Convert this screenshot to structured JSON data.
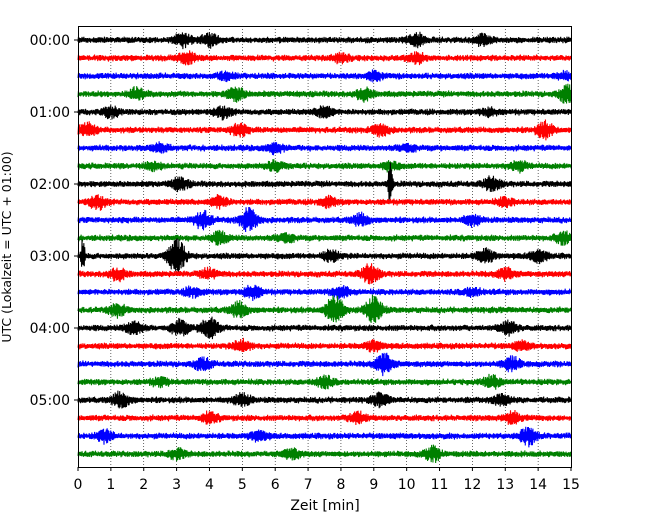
{
  "chart_data": {
    "type": "line",
    "title": "",
    "xlabel": "Zeit  [min]",
    "ylabel": "UTC (Lokalzeit = UTC + 01:00)",
    "xlim": [
      0,
      15
    ],
    "xticks": [
      0,
      1,
      2,
      3,
      4,
      5,
      6,
      7,
      8,
      9,
      10,
      11,
      12,
      13,
      14,
      15
    ],
    "grid": "vertical dotted",
    "trace_interval_minutes": 15,
    "trace_colors": [
      "#000000",
      "#ff0000",
      "#0000ff",
      "#008000"
    ],
    "ytick_labels": [
      "00:00",
      "01:00",
      "02:00",
      "03:00",
      "04:00",
      "05:00"
    ],
    "traces": [
      {
        "start": "00:00",
        "color": "#000000",
        "events": [
          [
            3.2,
            0.35
          ],
          [
            4.0,
            0.3
          ],
          [
            10.3,
            0.35
          ],
          [
            12.3,
            0.25
          ]
        ]
      },
      {
        "start": "00:15",
        "color": "#ff0000",
        "events": [
          [
            3.3,
            0.3
          ],
          [
            8.0,
            0.2
          ],
          [
            10.3,
            0.25
          ]
        ]
      },
      {
        "start": "00:30",
        "color": "#0000ff",
        "events": [
          [
            4.5,
            0.2
          ],
          [
            9.0,
            0.2
          ],
          [
            14.8,
            0.2
          ]
        ]
      },
      {
        "start": "00:45",
        "color": "#008000",
        "events": [
          [
            1.8,
            0.3
          ],
          [
            4.8,
            0.35
          ],
          [
            8.7,
            0.3
          ],
          [
            14.9,
            0.45
          ]
        ]
      },
      {
        "start": "01:00",
        "color": "#000000",
        "events": [
          [
            1.0,
            0.25
          ],
          [
            4.4,
            0.3
          ],
          [
            7.5,
            0.3
          ],
          [
            12.5,
            0.2
          ]
        ]
      },
      {
        "start": "01:15",
        "color": "#ff0000",
        "events": [
          [
            0.3,
            0.35
          ],
          [
            4.9,
            0.3
          ],
          [
            9.2,
            0.3
          ],
          [
            14.2,
            0.4
          ]
        ]
      },
      {
        "start": "01:30",
        "color": "#0000ff",
        "events": [
          [
            2.5,
            0.2
          ],
          [
            6.0,
            0.25
          ],
          [
            10.0,
            0.2
          ]
        ]
      },
      {
        "start": "01:45",
        "color": "#008000",
        "events": [
          [
            2.3,
            0.2
          ],
          [
            6.0,
            0.25
          ],
          [
            9.5,
            0.2
          ],
          [
            13.4,
            0.25
          ]
        ]
      },
      {
        "start": "02:00",
        "color": "#000000",
        "events": [
          [
            3.1,
            0.3
          ],
          [
            9.5,
            1.6
          ],
          [
            12.6,
            0.35
          ]
        ]
      },
      {
        "start": "02:15",
        "color": "#ff0000",
        "events": [
          [
            0.6,
            0.35
          ],
          [
            4.3,
            0.3
          ],
          [
            7.6,
            0.25
          ],
          [
            13.0,
            0.2
          ]
        ]
      },
      {
        "start": "02:30",
        "color": "#0000ff",
        "events": [
          [
            3.8,
            0.45
          ],
          [
            5.2,
            0.6
          ],
          [
            8.6,
            0.3
          ],
          [
            12.0,
            0.25
          ]
        ]
      },
      {
        "start": "02:45",
        "color": "#008000",
        "events": [
          [
            4.3,
            0.3
          ],
          [
            6.3,
            0.25
          ],
          [
            14.8,
            0.3
          ]
        ]
      },
      {
        "start": "03:00",
        "color": "#000000",
        "events": [
          [
            0.15,
            1.0
          ],
          [
            3.0,
            0.9
          ],
          [
            7.7,
            0.3
          ],
          [
            12.4,
            0.35
          ],
          [
            14.0,
            0.3
          ]
        ]
      },
      {
        "start": "03:15",
        "color": "#ff0000",
        "events": [
          [
            1.2,
            0.3
          ],
          [
            4.0,
            0.25
          ],
          [
            8.9,
            0.5
          ],
          [
            13.0,
            0.3
          ]
        ]
      },
      {
        "start": "03:30",
        "color": "#0000ff",
        "events": [
          [
            3.5,
            0.25
          ],
          [
            5.3,
            0.35
          ],
          [
            8.0,
            0.3
          ],
          [
            12.0,
            0.2
          ]
        ]
      },
      {
        "start": "03:45",
        "color": "#008000",
        "events": [
          [
            1.2,
            0.3
          ],
          [
            4.9,
            0.4
          ],
          [
            7.8,
            0.8
          ],
          [
            9.0,
            0.7
          ]
        ]
      },
      {
        "start": "04:00",
        "color": "#000000",
        "events": [
          [
            1.7,
            0.35
          ],
          [
            3.1,
            0.4
          ],
          [
            4.0,
            0.55
          ],
          [
            13.1,
            0.35
          ]
        ]
      },
      {
        "start": "04:15",
        "color": "#ff0000",
        "events": [
          [
            5.0,
            0.3
          ],
          [
            9.0,
            0.25
          ],
          [
            13.5,
            0.2
          ]
        ]
      },
      {
        "start": "04:30",
        "color": "#0000ff",
        "events": [
          [
            3.8,
            0.3
          ],
          [
            9.3,
            0.55
          ],
          [
            13.2,
            0.35
          ]
        ]
      },
      {
        "start": "04:45",
        "color": "#008000",
        "events": [
          [
            2.5,
            0.2
          ],
          [
            7.5,
            0.3
          ],
          [
            12.6,
            0.3
          ]
        ]
      },
      {
        "start": "05:00",
        "color": "#000000",
        "events": [
          [
            1.3,
            0.4
          ],
          [
            5.0,
            0.3
          ],
          [
            9.2,
            0.3
          ],
          [
            12.9,
            0.3
          ]
        ]
      },
      {
        "start": "05:15",
        "color": "#ff0000",
        "events": [
          [
            4.0,
            0.25
          ],
          [
            8.5,
            0.3
          ],
          [
            13.2,
            0.3
          ]
        ]
      },
      {
        "start": "05:30",
        "color": "#0000ff",
        "events": [
          [
            0.8,
            0.3
          ],
          [
            5.5,
            0.25
          ],
          [
            13.7,
            0.45
          ]
        ]
      },
      {
        "start": "05:45",
        "color": "#008000",
        "events": [
          [
            3.0,
            0.25
          ],
          [
            6.5,
            0.25
          ],
          [
            10.8,
            0.35
          ]
        ]
      }
    ]
  }
}
